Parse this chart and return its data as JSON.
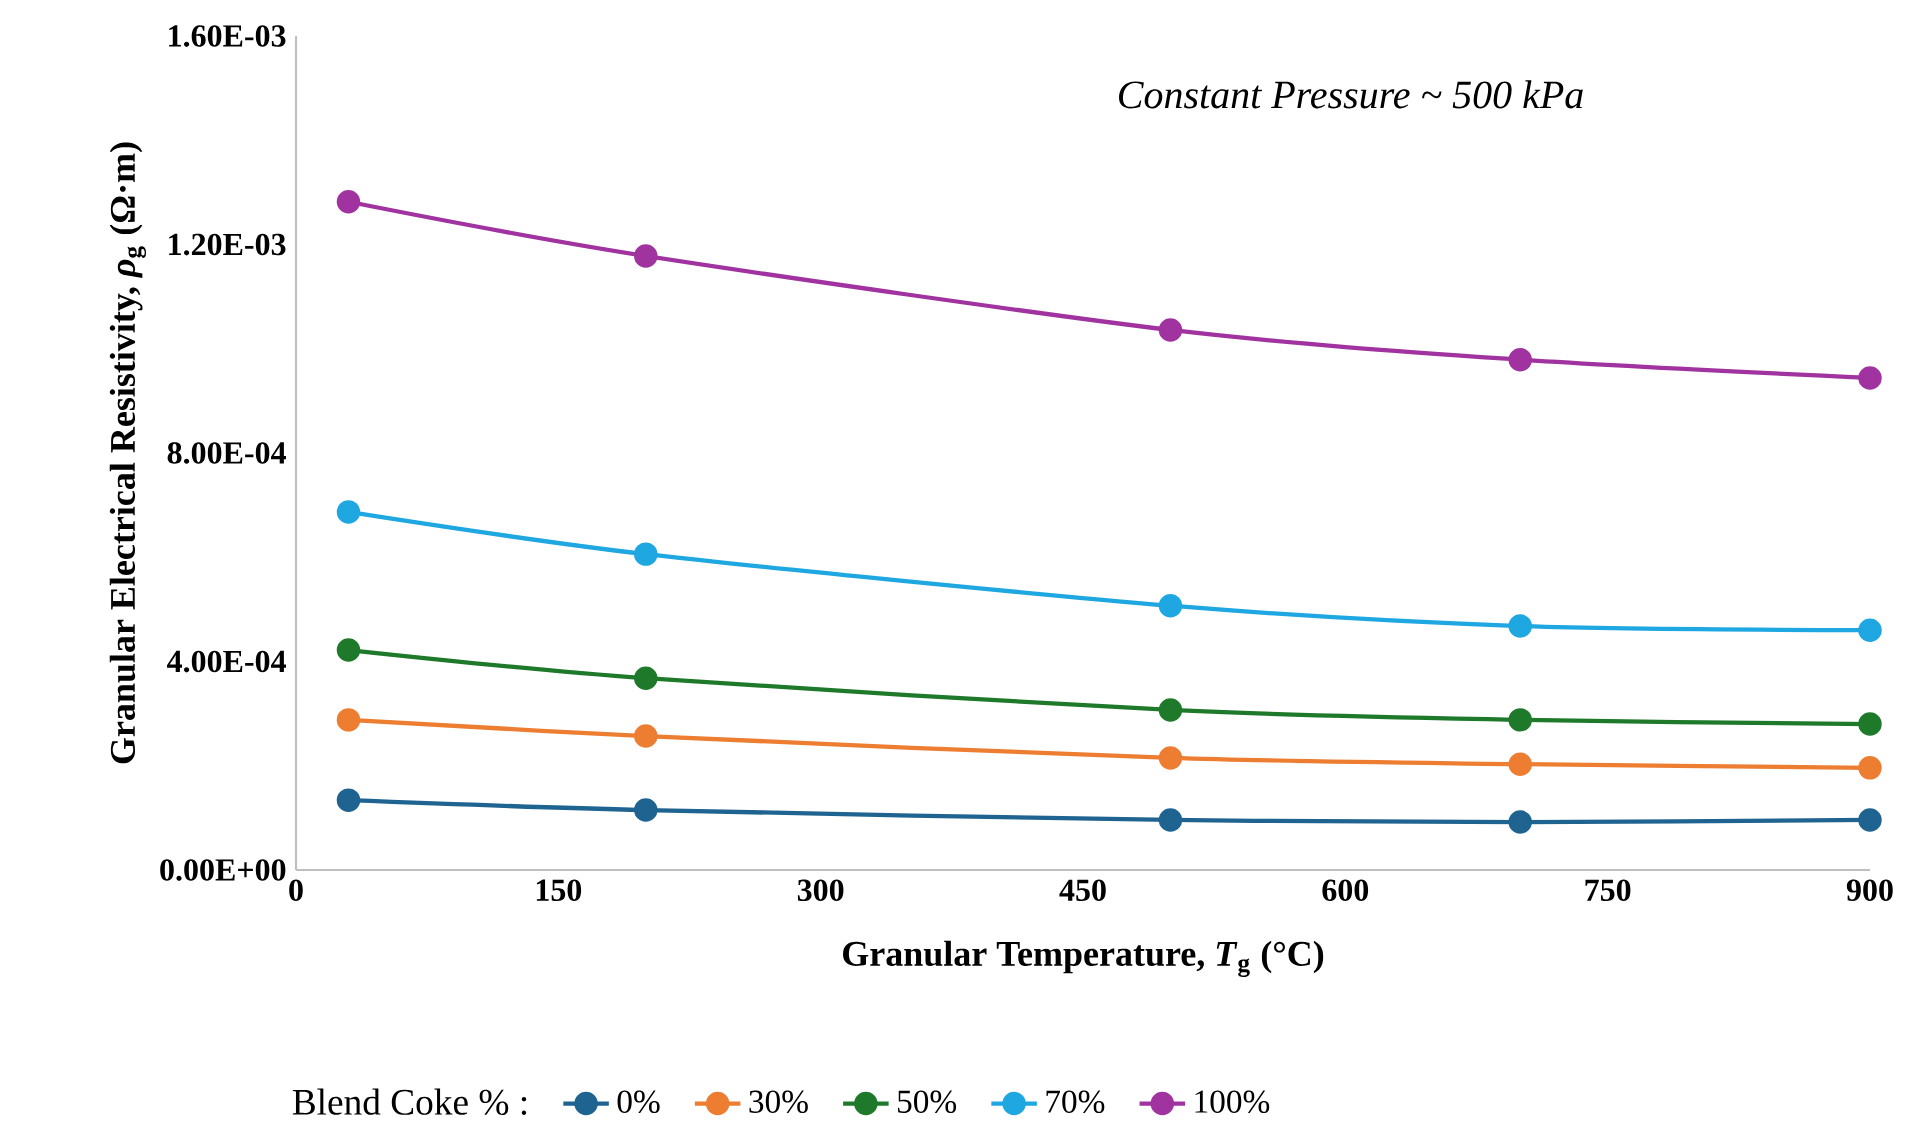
{
  "chart_data": {
    "type": "line",
    "xlabel": "Granular Temperature, *T*$_{g}$ (°C)",
    "ylabel": "Granular Electrical Resistivity, *ρ*$_{g}$ (Ω·m)",
    "legend_title": "Blend Coke % :",
    "annotations": [
      "Constant Pressure ~ 500 kPa"
    ],
    "x": [
      30,
      200,
      500,
      700,
      900
    ],
    "series": [
      {
        "name": "0%",
        "color": "#1f6391",
        "values": [
          0.000134,
          0.000115,
          9.6e-05,
          9.2e-05,
          9.6e-05
        ]
      },
      {
        "name": "30%",
        "color": "#ed7d31",
        "values": [
          0.000288,
          0.000257,
          0.000215,
          0.000203,
          0.000196
        ]
      },
      {
        "name": "50%",
        "color": "#1e7a2a",
        "values": [
          0.000422,
          0.000368,
          0.000307,
          0.000288,
          0.00028
        ]
      },
      {
        "name": "70%",
        "color": "#1ea7e1",
        "values": [
          0.000687,
          0.000606,
          0.000507,
          0.000468,
          0.00046
        ]
      },
      {
        "name": "100%",
        "color": "#a0339f",
        "values": [
          0.001282,
          0.001178,
          0.001036,
          0.000979,
          0.000944
        ]
      }
    ],
    "xlim": [
      0,
      900
    ],
    "ylim": [
      0,
      0.0016
    ],
    "xticks": [
      0,
      150,
      300,
      450,
      600,
      750,
      900
    ],
    "yticks": [
      {
        "value": 0,
        "label": "0.00E+00"
      },
      {
        "value": 0.0004,
        "label": "4.00E-04"
      },
      {
        "value": 0.0008,
        "label": "8.00E-04"
      },
      {
        "value": 0.0012,
        "label": "1.20E-03"
      },
      {
        "value": 0.0016,
        "label": "1.60E-03"
      }
    ],
    "grid": false,
    "legend": "bottom",
    "marker": "circle",
    "line_style": "solid"
  }
}
